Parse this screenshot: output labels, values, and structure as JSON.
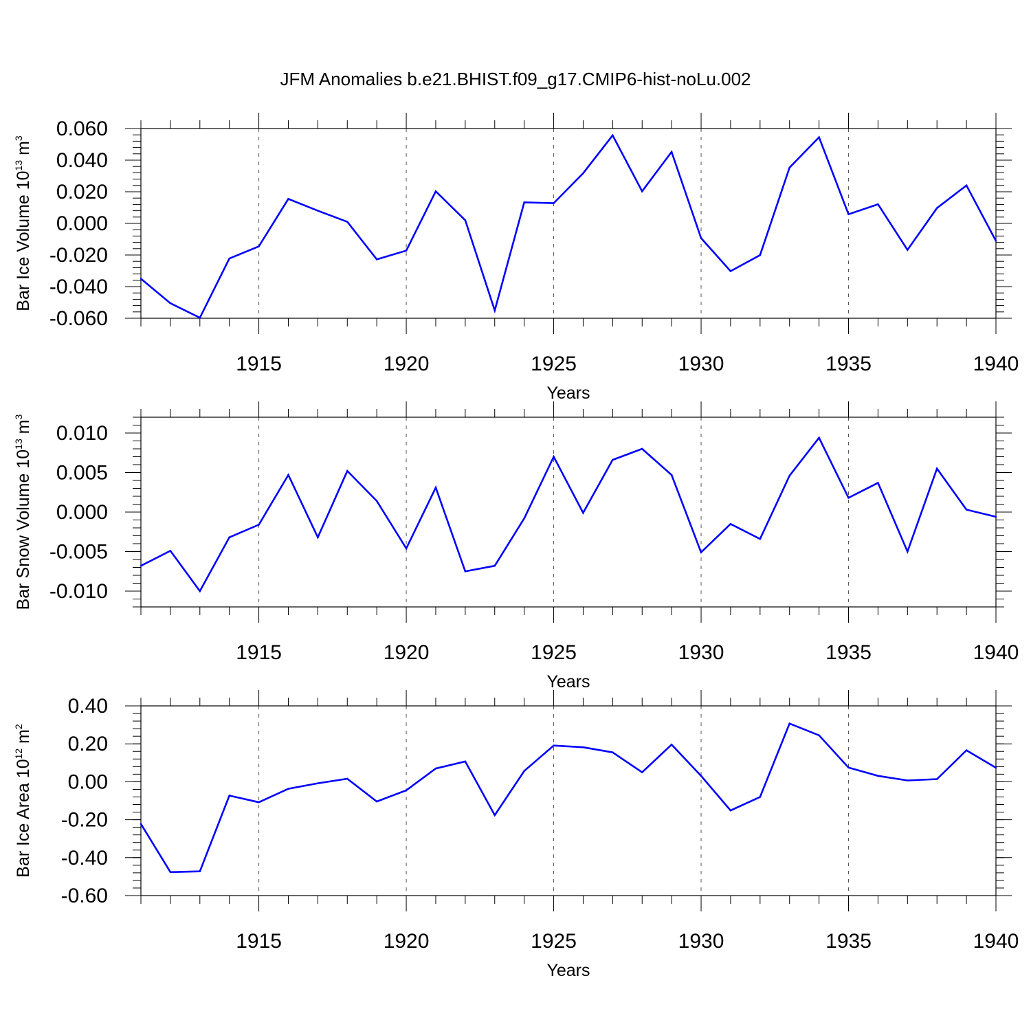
{
  "title": "JFM Anomalies b.e21.BHIST.f09_g17.CMIP6-hist-noLu.002",
  "colors": {
    "line": "#0000ff",
    "axis": "#000000",
    "grid": "#555555"
  },
  "chart_data": [
    {
      "type": "line",
      "ylabel": {
        "base": "Bar Ice Volume 10",
        "exp": "13",
        "unit": " m",
        "unit_exp": "3"
      },
      "xlabel": "Years",
      "xlim": [
        1911,
        1940
      ],
      "xticks": [
        1915,
        1920,
        1925,
        1930,
        1935,
        1940
      ],
      "xtick_labels": [
        "1915",
        "1920",
        "1925",
        "1930",
        "1935",
        "1940"
      ],
      "ylim": [
        -0.06,
        0.06
      ],
      "yticks": [
        -0.06,
        -0.04,
        -0.02,
        0.0,
        0.02,
        0.04,
        0.06
      ],
      "ytick_labels": [
        "-0.060",
        "-0.040",
        "-0.020",
        "0.000",
        "0.020",
        "0.040",
        "0.060"
      ],
      "yminor_step": 0.004,
      "grid": "vertical dashed at major x ticks",
      "series": [
        {
          "x": [
            1911,
            1912,
            1913,
            1914,
            1915,
            1916,
            1917,
            1918,
            1919,
            1920,
            1921,
            1922,
            1923,
            1924,
            1925,
            1926,
            1927,
            1928,
            1929,
            1930,
            1931,
            1932,
            1933,
            1934,
            1935,
            1936,
            1937,
            1938,
            1939,
            1940
          ],
          "values": [
            -0.035,
            -0.0505,
            -0.0597,
            -0.0222,
            -0.0145,
            0.0155,
            0.008,
            0.001,
            -0.0228,
            -0.0172,
            0.0203,
            0.002,
            -0.0551,
            0.0133,
            0.0128,
            0.0317,
            0.0557,
            0.0203,
            0.0452,
            -0.0093,
            -0.0302,
            -0.0201,
            0.0353,
            0.0545,
            0.0058,
            0.0121,
            -0.0168,
            0.0097,
            0.024,
            -0.0111
          ]
        }
      ]
    },
    {
      "type": "line",
      "ylabel": {
        "base": "Bar Snow Volume 10",
        "exp": "13",
        "unit": " m",
        "unit_exp": "3"
      },
      "xlabel": "Years",
      "xlim": [
        1911,
        1940
      ],
      "xticks": [
        1915,
        1920,
        1925,
        1930,
        1935,
        1940
      ],
      "xtick_labels": [
        "1915",
        "1920",
        "1925",
        "1930",
        "1935",
        "1940"
      ],
      "ylim": [
        -0.012,
        0.012
      ],
      "yticks": [
        -0.01,
        -0.005,
        0.0,
        0.005,
        0.01
      ],
      "ytick_labels": [
        "-0.010",
        "-0.005",
        "0.000",
        "0.005",
        "0.010"
      ],
      "yminor_step": 0.001,
      "grid": "vertical dashed at major x ticks",
      "series": [
        {
          "x": [
            1911,
            1912,
            1913,
            1914,
            1915,
            1916,
            1917,
            1918,
            1919,
            1920,
            1921,
            1922,
            1923,
            1924,
            1925,
            1926,
            1927,
            1928,
            1929,
            1930,
            1931,
            1932,
            1933,
            1934,
            1935,
            1936,
            1937,
            1938,
            1939,
            1940
          ],
          "values": [
            -0.0068,
            -0.0049,
            -0.01,
            -0.0032,
            -0.0016,
            0.0047,
            -0.0032,
            0.0052,
            0.0014,
            -0.0046,
            0.0031,
            -0.0075,
            -0.0068,
            -0.0008,
            0.007,
            -0.0001,
            0.0066,
            0.008,
            0.0047,
            -0.0051,
            -0.0015,
            -0.0034,
            0.0046,
            0.0094,
            0.0018,
            0.0037,
            -0.005,
            0.0055,
            0.0003,
            -0.0006
          ]
        }
      ]
    },
    {
      "type": "line",
      "ylabel": {
        "base": "Bar Ice Area 10",
        "exp": "12",
        "unit": " m",
        "unit_exp": "2"
      },
      "xlabel": "Years",
      "xlim": [
        1911,
        1940
      ],
      "xticks": [
        1915,
        1920,
        1925,
        1930,
        1935,
        1940
      ],
      "xtick_labels": [
        "1915",
        "1920",
        "1925",
        "1930",
        "1935",
        "1940"
      ],
      "ylim": [
        -0.6,
        0.4
      ],
      "yticks": [
        -0.6,
        -0.4,
        -0.2,
        0.0,
        0.2,
        0.4
      ],
      "ytick_labels": [
        "-0.60",
        "-0.40",
        "-0.20",
        "0.00",
        "0.20",
        "0.40"
      ],
      "yminor_step": 0.04,
      "grid": "vertical dashed at major x ticks",
      "series": [
        {
          "x": [
            1911,
            1912,
            1913,
            1914,
            1915,
            1916,
            1917,
            1918,
            1919,
            1920,
            1921,
            1922,
            1923,
            1924,
            1925,
            1926,
            1927,
            1928,
            1929,
            1930,
            1931,
            1932,
            1933,
            1934,
            1935,
            1936,
            1937,
            1938,
            1939,
            1940
          ],
          "values": [
            -0.222,
            -0.476,
            -0.472,
            -0.073,
            -0.108,
            -0.037,
            -0.008,
            0.016,
            -0.104,
            -0.045,
            0.07,
            0.107,
            -0.176,
            0.057,
            0.191,
            0.182,
            0.155,
            0.05,
            0.196,
            0.031,
            -0.151,
            -0.08,
            0.307,
            0.245,
            0.075,
            0.031,
            0.007,
            0.014,
            0.166,
            0.074
          ]
        }
      ]
    }
  ]
}
